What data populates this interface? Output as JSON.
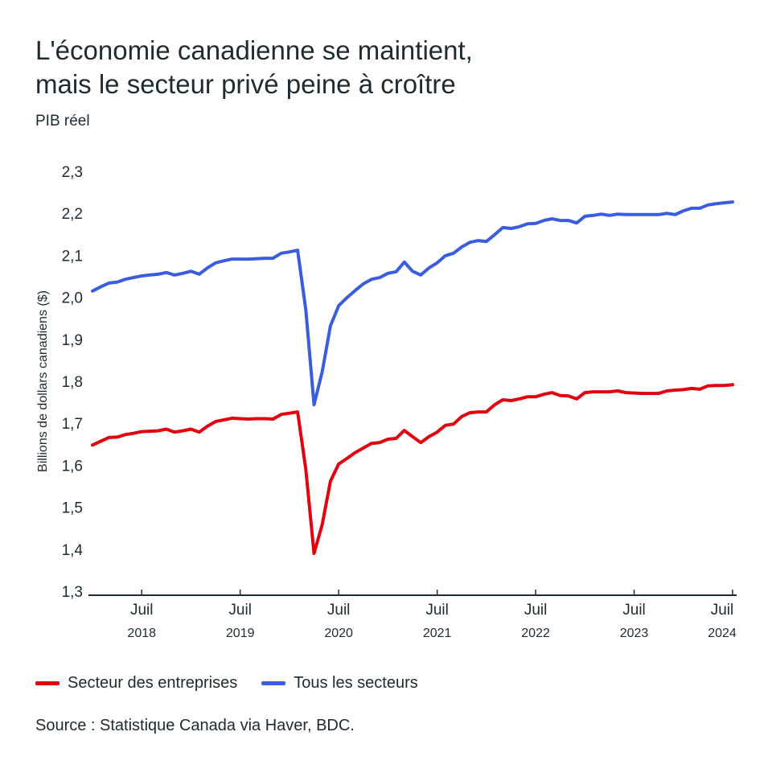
{
  "title_line1": "L'économie canadienne se maintient,",
  "title_line2": "mais le secteur privé peine à croître",
  "subtitle": "PIB réel",
  "source": "Source : Statistique Canada via Haver, BDC.",
  "chart_data": {
    "type": "line",
    "title": "L'économie canadienne se maintient, mais le secteur privé peine à croître",
    "subtitle": "PIB réel",
    "ylabel": "Billions de dollars canadiens ($)",
    "xlabel": "",
    "ylim": [
      1.3,
      2.3
    ],
    "yticks": [
      "2,3",
      "2,2",
      "2,1",
      "2,0",
      "1,9",
      "1,8",
      "1,7",
      "1,6",
      "1,5",
      "1,4",
      "1,3"
    ],
    "ytick_values": [
      2.3,
      2.2,
      2.1,
      2.0,
      1.9,
      1.8,
      1.7,
      1.6,
      1.5,
      1.4,
      1.3
    ],
    "xticks": [
      {
        "month": "2018-07",
        "label": "Juil",
        "year": "2018"
      },
      {
        "month": "2019-07",
        "label": "Juil",
        "year": "2019"
      },
      {
        "month": "2020-07",
        "label": "Juil",
        "year": "2020"
      },
      {
        "month": "2021-07",
        "label": "Juil",
        "year": "2021"
      },
      {
        "month": "2022-07",
        "label": "Juil",
        "year": "2022"
      },
      {
        "month": "2023-07",
        "label": "Juil",
        "year": "2023"
      },
      {
        "month": "2024-07",
        "label": "Juil",
        "year": "2024"
      }
    ],
    "grid": false,
    "legend_position": "bottom-left",
    "x": [
      "2018-01",
      "2018-02",
      "2018-03",
      "2018-04",
      "2018-05",
      "2018-06",
      "2018-07",
      "2018-08",
      "2018-09",
      "2018-10",
      "2018-11",
      "2018-12",
      "2019-01",
      "2019-02",
      "2019-03",
      "2019-04",
      "2019-05",
      "2019-06",
      "2019-07",
      "2019-08",
      "2019-09",
      "2019-10",
      "2019-11",
      "2019-12",
      "2020-01",
      "2020-02",
      "2020-03",
      "2020-04",
      "2020-05",
      "2020-06",
      "2020-07",
      "2020-08",
      "2020-09",
      "2020-10",
      "2020-11",
      "2020-12",
      "2021-01",
      "2021-02",
      "2021-03",
      "2021-04",
      "2021-05",
      "2021-06",
      "2021-07",
      "2021-08",
      "2021-09",
      "2021-10",
      "2021-11",
      "2021-12",
      "2022-01",
      "2022-02",
      "2022-03",
      "2022-04",
      "2022-05",
      "2022-06",
      "2022-07",
      "2022-08",
      "2022-09",
      "2022-10",
      "2022-11",
      "2022-12",
      "2023-01",
      "2023-02",
      "2023-03",
      "2023-04",
      "2023-05",
      "2023-06",
      "2023-07",
      "2023-08",
      "2023-09",
      "2023-10",
      "2023-11",
      "2023-12",
      "2024-01",
      "2024-02",
      "2024-03",
      "2024-04",
      "2024-05",
      "2024-06",
      "2024-07"
    ],
    "series": [
      {
        "name": "Secteur des entreprises",
        "color": "#e3000f",
        "values": [
          1.648,
          1.657,
          1.666,
          1.667,
          1.673,
          1.676,
          1.68,
          1.681,
          1.682,
          1.686,
          1.679,
          1.682,
          1.686,
          1.679,
          1.693,
          1.704,
          1.708,
          1.712,
          1.711,
          1.71,
          1.711,
          1.711,
          1.71,
          1.721,
          1.724,
          1.727,
          1.59,
          1.39,
          1.459,
          1.562,
          1.603,
          1.616,
          1.63,
          1.641,
          1.652,
          1.654,
          1.662,
          1.664,
          1.683,
          1.668,
          1.654,
          1.668,
          1.679,
          1.695,
          1.698,
          1.716,
          1.725,
          1.727,
          1.727,
          1.744,
          1.756,
          1.754,
          1.758,
          1.763,
          1.763,
          1.769,
          1.773,
          1.766,
          1.765,
          1.758,
          1.773,
          1.775,
          1.775,
          1.775,
          1.777,
          1.773,
          1.772,
          1.771,
          1.771,
          1.771,
          1.777,
          1.779,
          1.78,
          1.783,
          1.781,
          1.789,
          1.79,
          1.79,
          1.792
        ]
      },
      {
        "name": "Tous les secteurs",
        "color": "#3a5de0",
        "values": [
          2.015,
          2.025,
          2.034,
          2.036,
          2.043,
          2.047,
          2.051,
          2.053,
          2.055,
          2.059,
          2.053,
          2.057,
          2.062,
          2.055,
          2.07,
          2.082,
          2.087,
          2.091,
          2.091,
          2.091,
          2.092,
          2.093,
          2.093,
          2.105,
          2.108,
          2.112,
          1.97,
          1.744,
          1.823,
          1.932,
          1.98,
          1.999,
          2.016,
          2.032,
          2.043,
          2.047,
          2.057,
          2.061,
          2.084,
          2.062,
          2.053,
          2.07,
          2.082,
          2.099,
          2.105,
          2.12,
          2.131,
          2.135,
          2.133,
          2.149,
          2.166,
          2.164,
          2.168,
          2.175,
          2.176,
          2.183,
          2.187,
          2.183,
          2.183,
          2.177,
          2.193,
          2.195,
          2.198,
          2.195,
          2.198,
          2.197,
          2.197,
          2.197,
          2.197,
          2.197,
          2.2,
          2.197,
          2.206,
          2.212,
          2.212,
          2.22,
          2.223,
          2.225,
          2.227
        ]
      }
    ]
  }
}
